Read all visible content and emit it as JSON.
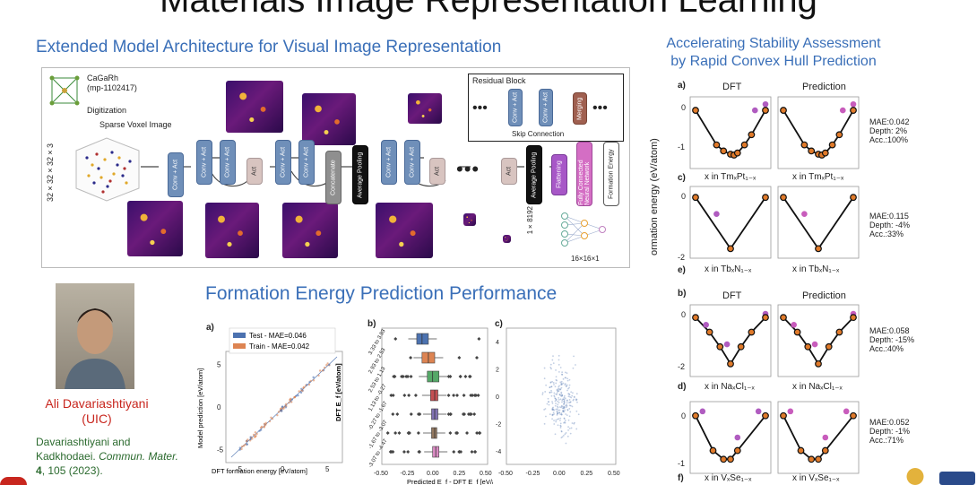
{
  "main_title": "Materials Image Representation Learning",
  "architecture": {
    "heading": "Extended Model Architecture for Visual Image Representation",
    "material_formula": "CaGaRh",
    "material_id": "(mp-1102417)",
    "digitization": "Digitization",
    "sparse_voxel": "Sparse Voxel Image",
    "input_size": "32×32×32×3",
    "residual_block": "Residual Block",
    "skip_connection": "Skip Connection",
    "merging": "Merging",
    "conv_act": "Conv + Act",
    "act": "Act",
    "concatenate": "Concatenate",
    "average_pooling": "Average Pooling",
    "flattening": "Flattening",
    "fc": "Fully Connected Neural Network",
    "formation_energy": "Formation Energy",
    "vec_size": "1×8192",
    "out_size": "16×16×1"
  },
  "author": {
    "name": "Ali Davariashtiyani",
    "affiliation": "(UIC)",
    "citation_authors": "Davariashtiyani and Kadkhodaei.",
    "citation_journal": "Commun. Mater.",
    "citation_volume": "4",
    "citation_rest": ", 105 (2023)."
  },
  "performance": {
    "heading": "Formation Energy Prediction Performance",
    "panel_a": "a)",
    "panel_b": "b)",
    "panel_c": "c)",
    "legend_test": "Test - MAE=0.046",
    "legend_train": "Train - MAE=0.042",
    "a_xlabel": "DFT formation energy [eV/atom]",
    "a_ylabel": "Model prediction [eV/atom]",
    "b_ylabel": "DFT E_f [eV/atom]",
    "bc_xlabel": "Predicted E_f - DFT E_f [eV/atom]"
  },
  "chart_data": [
    {
      "type": "scatter",
      "panel": "a",
      "xlabel": "DFT formation energy [eV/atom]",
      "ylabel": "Model prediction [eV/atom]",
      "xlim": [
        -6.5,
        6.5
      ],
      "ylim": [
        -6.5,
        6.5
      ],
      "xticks": [
        "-5",
        "0",
        "5"
      ],
      "yticks": [
        "-5",
        "0",
        "5"
      ],
      "series": [
        {
          "name": "Test - MAE=0.046",
          "color": "#4c72b0"
        },
        {
          "name": "Train - MAE=0.042",
          "color": "#dd8452"
        }
      ]
    },
    {
      "type": "box",
      "panel": "b",
      "ylabel": "DFT E_f [eV/atom]",
      "xlabel": "Predicted E_f - DFT E_f [eV/atom]",
      "xlim": [
        -0.5,
        0.5
      ],
      "xticks": [
        "-0.50",
        "-0.25",
        "0.00",
        "0.25",
        "0.50"
      ],
      "categories": [
        "3.33 to 3.93",
        "2.93 to 2.53",
        "2.53 to 1.13",
        "1.13 to -0.27",
        "-0.27 to -1.67",
        "-1.67 to -3.07",
        "-3.07 to -4.47"
      ],
      "boxes": [
        {
          "q1": -0.17,
          "median": -0.12,
          "q3": -0.06,
          "color": "#4c72b0"
        },
        {
          "q1": -0.12,
          "median": -0.06,
          "q3": 0.0,
          "color": "#dd8452"
        },
        {
          "q1": -0.07,
          "median": -0.02,
          "q3": 0.04,
          "color": "#55a868"
        },
        {
          "q1": -0.04,
          "median": 0.0,
          "q3": 0.03,
          "color": "#c44e52"
        },
        {
          "q1": -0.03,
          "median": 0.0,
          "q3": 0.03,
          "color": "#8172b3"
        },
        {
          "q1": -0.03,
          "median": 0.0,
          "q3": 0.02,
          "color": "#937860"
        },
        {
          "q1": -0.02,
          "median": 0.01,
          "q3": 0.04,
          "color": "#da8bc3"
        }
      ]
    },
    {
      "type": "scatter",
      "panel": "c",
      "xlabel": "Predicted E_f - DFT E_f [eV/atom]",
      "xlim": [
        -0.5,
        0.5
      ],
      "ylim": [
        -5,
        5
      ],
      "xticks": [
        "-0.50",
        "-0.25",
        "0.00",
        "0.25",
        "0.50"
      ],
      "yticks": [
        "4",
        "2",
        "0",
        "-2",
        "-4"
      ]
    },
    {
      "type": "line",
      "panel": "hull",
      "note": "convex hull plots",
      "rows": [
        {
          "label": "a)",
          "xlabel_left": "x in Tm",
          "mae": "MAE:0.042",
          "depth": "Depth: 2%",
          "acc": "Acc.:100%",
          "yticks": [
            "0",
            "-1"
          ]
        },
        {
          "label": "c)",
          "xlabel_left": "x in Tb",
          "mae": "MAE:0.115",
          "depth": "Depth: -4%",
          "acc": "Acc.:33%",
          "yticks": [
            "0",
            "-2"
          ]
        },
        {
          "label": "b)",
          "xlabel_left": "x in Na",
          "mae": "MAE:0.058",
          "depth": "Depth: -15%",
          "acc": "Acc.:40%",
          "yticks": [
            "0",
            "-2"
          ]
        },
        {
          "label": "d)",
          "xlabel_left": "x in V",
          "mae": "MAE:0.052",
          "depth": "Depth: -1%",
          "acc": "Acc.:71%",
          "yticks": [
            "0",
            "-1"
          ]
        }
      ]
    }
  ],
  "hull": {
    "heading_line1": "Accelerating Stability Assessment",
    "heading_line2": "by Rapid Convex Hull Prediction",
    "col_dft": "DFT",
    "col_pred": "Prediction",
    "ylabel": "ormation energy (eV/atom)",
    "row1": {
      "label": "a)",
      "tick0": "0",
      "tick1": "-1",
      "xlabel": "x in TmₓPt₁₋ₓ",
      "mae": "MAE:0.042",
      "depth": "Depth: 2%",
      "acc": "Acc.:100%"
    },
    "row2": {
      "label": "c)",
      "tick0": "0",
      "tick1": "-2",
      "xlabel": "x in TbₓN₁₋ₓ",
      "mae": "MAE:0.115",
      "depth": "Depth: -4%",
      "acc": "Acc.:33%"
    },
    "label_e": "e)",
    "row3": {
      "label": "b)",
      "tick0": "0",
      "tick1": "-2",
      "xlabel": "x in NaₓCl₁₋ₓ",
      "mae": "MAE:0.058",
      "depth": "Depth: -15%",
      "acc": "Acc.:40%"
    },
    "row4": {
      "label": "d)",
      "tick0": "0",
      "tick1": "-1",
      "xlabel": "x in VₓSe₁₋ₓ",
      "mae": "MAE:0.052",
      "depth": "Depth: -1%",
      "acc": "Acc.:71%"
    },
    "label_f": "f)"
  }
}
